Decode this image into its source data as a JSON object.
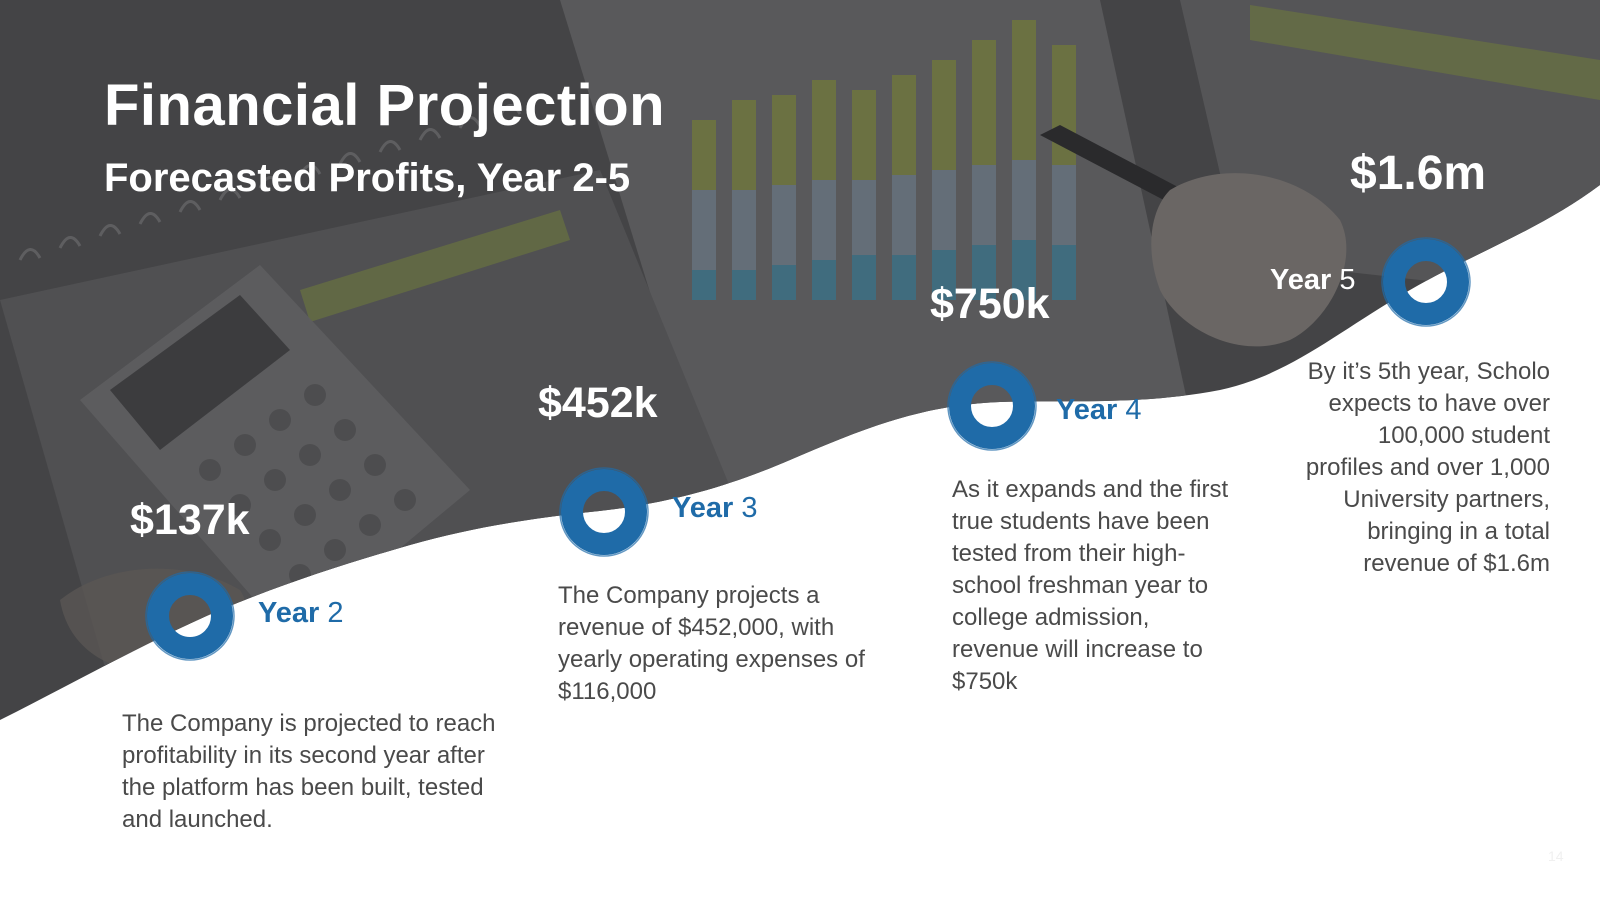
{
  "header": {
    "title": "Financial Projection",
    "subtitle": "Forecasted Profits, Year 2-5"
  },
  "milestones": [
    {
      "amount": "$137k",
      "year_word": "Year",
      "year_num": "2",
      "description": "The Company is projected to reach profitability in its second year after the platform has been built, tested and launched."
    },
    {
      "amount": "$452k",
      "year_word": "Year",
      "year_num": "3",
      "description": "The Company projects a revenue of $452,000, with yearly operating expenses of $116,000"
    },
    {
      "amount": "$750k",
      "year_word": "Year",
      "year_num": "4",
      "description": "As it expands and the first true students have been tested from their high-school freshman year to college admission, revenue will increase to $750k"
    },
    {
      "amount": "$1.6m",
      "year_word": "Year",
      "year_num": "5",
      "description": "By it’s 5th year, Scholo expects to have over 100,000 student profiles and over 1,000 University partners, bringing in a total revenue of $1.6m"
    }
  ],
  "colors": {
    "overlay": "#444446",
    "accent": "#1f6ba8",
    "text": "#4a4a4a"
  },
  "page_number": "14"
}
